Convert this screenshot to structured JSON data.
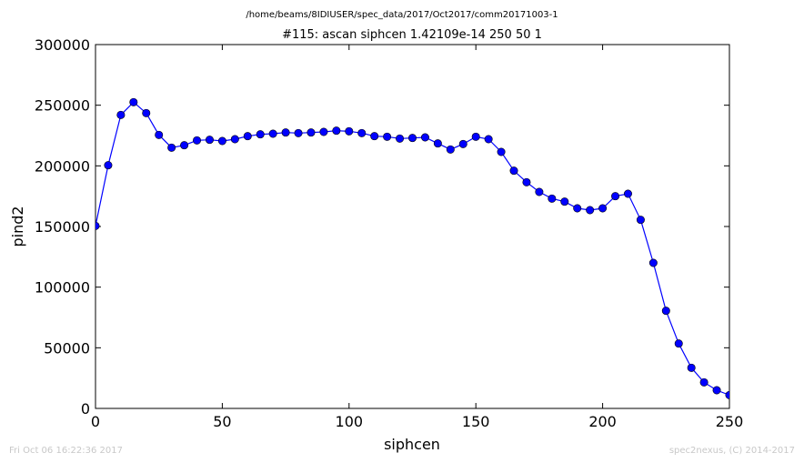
{
  "chart_data": {
    "type": "line",
    "suptitle": "/home/beams/8IDIUSER/spec_data/2017/Oct2017/comm20171003-1",
    "title": "#115: ascan  siphcen 1.42109e-14 250  50 1",
    "xlabel": "siphcen",
    "ylabel": "pind2",
    "xlim": [
      0,
      250
    ],
    "ylim": [
      0,
      300000
    ],
    "xticks": [
      0,
      50,
      100,
      150,
      200,
      250
    ],
    "yticks": [
      0,
      50000,
      100000,
      150000,
      200000,
      250000,
      300000
    ],
    "xtick_labels": [
      "0",
      "50",
      "100",
      "150",
      "200",
      "250"
    ],
    "ytick_labels": [
      "0",
      "50000",
      "100000",
      "150000",
      "200000",
      "250000",
      "300000"
    ],
    "grid": false,
    "line_color": "#0000ff",
    "marker_color": "#0000ff",
    "x": [
      0,
      5,
      10,
      15,
      20,
      25,
      30,
      35,
      40,
      45,
      50,
      55,
      60,
      65,
      70,
      75,
      80,
      85,
      90,
      95,
      100,
      105,
      110,
      115,
      120,
      125,
      130,
      135,
      140,
      145,
      150,
      155,
      160,
      165,
      170,
      175,
      180,
      185,
      190,
      195,
      200,
      205,
      210,
      215,
      220,
      225,
      230,
      235,
      240,
      245,
      250
    ],
    "series": [
      {
        "values": [
          150500,
          200500,
          242000,
          252500,
          243500,
          225500,
          215000,
          217000,
          221000,
          221500,
          220500,
          222000,
          224500,
          226000,
          226500,
          227500,
          227000,
          227500,
          228000,
          229000,
          228500,
          227000,
          224500,
          224000,
          222500,
          223000,
          223500,
          218500,
          213500,
          218000,
          224000,
          222000,
          211500,
          196000,
          186500,
          178500,
          173000,
          170500,
          165000,
          163500,
          165000,
          175000,
          177000,
          155500,
          120000,
          80500,
          53500,
          33500,
          21500,
          15000,
          11000
        ]
      }
    ]
  },
  "footer": {
    "left": "Fri Oct 06 16:22:36 2017",
    "right": "spec2nexus, (C) 2014-2017"
  }
}
